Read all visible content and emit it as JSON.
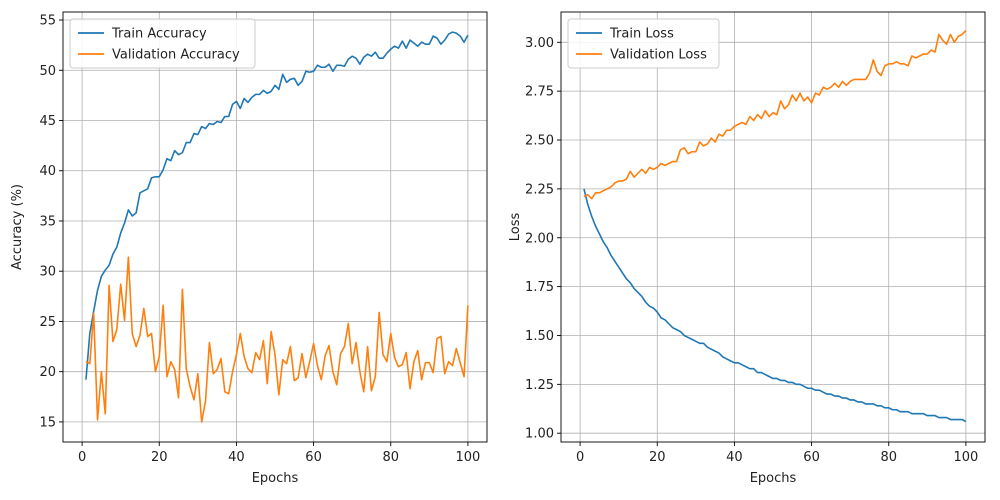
{
  "chart_data": [
    {
      "type": "line",
      "title": "",
      "xlabel": "Epochs",
      "ylabel": "Accuracy (%)",
      "xlim": [
        -4.95,
        104.95
      ],
      "ylim": [
        13.0,
        55.8
      ],
      "xticks": [
        0,
        20,
        40,
        60,
        80,
        100
      ],
      "yticks": [
        15,
        20,
        25,
        30,
        35,
        40,
        45,
        50,
        55
      ],
      "grid": true,
      "legend_position": "top-left",
      "series": [
        {
          "name": "Train Accuracy",
          "color": "#1f77b4",
          "x_start": 1,
          "values": [
            19.2,
            23.8,
            26.0,
            28.1,
            29.5,
            30.1,
            30.6,
            31.7,
            32.4,
            33.8,
            34.8,
            36.1,
            35.5,
            35.8,
            37.8,
            38.0,
            38.2,
            39.3,
            39.4,
            39.4,
            40.1,
            41.2,
            41.0,
            42.0,
            41.6,
            41.8,
            42.8,
            42.8,
            43.7,
            43.6,
            44.4,
            44.2,
            44.7,
            44.6,
            44.9,
            44.8,
            45.4,
            45.4,
            46.6,
            46.9,
            46.2,
            47.2,
            46.8,
            47.3,
            47.6,
            47.6,
            48.0,
            47.7,
            47.9,
            48.5,
            48.1,
            49.6,
            48.8,
            49.1,
            49.2,
            48.5,
            48.9,
            49.9,
            49.8,
            49.9,
            50.5,
            50.3,
            50.3,
            50.6,
            49.9,
            50.5,
            50.5,
            50.4,
            51.1,
            51.4,
            51.2,
            50.6,
            51.3,
            51.6,
            51.4,
            51.8,
            51.2,
            51.2,
            51.7,
            52.1,
            52.4,
            52.2,
            52.9,
            52.2,
            53.0,
            52.7,
            52.4,
            52.8,
            52.6,
            52.6,
            53.4,
            53.2,
            52.6,
            53.0,
            53.6,
            53.8,
            53.7,
            53.4,
            52.8,
            53.5
          ]
        },
        {
          "name": "Validation Accuracy",
          "color": "#ff7f0e",
          "x_start": 1,
          "values": [
            21.0,
            20.8,
            25.8,
            15.2,
            20.0,
            15.8,
            28.6,
            23.0,
            24.2,
            28.7,
            25.1,
            31.4,
            23.8,
            22.5,
            23.6,
            26.3,
            23.5,
            23.8,
            20.0,
            21.5,
            26.6,
            19.5,
            21.0,
            20.2,
            17.4,
            28.2,
            20.3,
            18.5,
            17.2,
            19.8,
            15.0,
            17.1,
            22.9,
            19.8,
            20.2,
            21.3,
            18.0,
            17.8,
            20.0,
            21.7,
            23.8,
            21.5,
            20.3,
            19.9,
            21.9,
            21.2,
            23.1,
            18.8,
            24.0,
            21.7,
            17.7,
            21.2,
            20.8,
            22.5,
            19.1,
            19.4,
            21.8,
            19.4,
            21.0,
            22.8,
            20.6,
            19.2,
            21.6,
            22.6,
            20.0,
            18.7,
            21.8,
            22.5,
            24.8,
            20.8,
            22.9,
            20.0,
            18.0,
            22.5,
            18.1,
            19.5,
            25.9,
            21.7,
            21.0,
            23.8,
            21.4,
            20.5,
            20.7,
            21.9,
            18.3,
            21.0,
            22.1,
            19.2,
            20.9,
            20.9,
            19.9,
            23.3,
            23.5,
            19.8,
            21.0,
            20.6,
            22.3,
            20.9,
            19.5,
            26.6
          ]
        }
      ]
    },
    {
      "type": "line",
      "title": "",
      "xlabel": "Epochs",
      "ylabel": "Loss",
      "xlim": [
        -4.95,
        104.95
      ],
      "ylim": [
        0.955,
        3.155
      ],
      "xticks": [
        0,
        20,
        40,
        60,
        80,
        100
      ],
      "yticks": [
        1.0,
        1.25,
        1.5,
        1.75,
        2.0,
        2.25,
        2.5,
        2.75,
        3.0
      ],
      "grid": true,
      "legend_position": "top-left",
      "series": [
        {
          "name": "Train Loss",
          "color": "#1f77b4",
          "x_start": 1,
          "values": [
            2.25,
            2.17,
            2.11,
            2.06,
            2.02,
            1.98,
            1.95,
            1.91,
            1.88,
            1.85,
            1.82,
            1.79,
            1.77,
            1.74,
            1.72,
            1.7,
            1.67,
            1.65,
            1.64,
            1.62,
            1.59,
            1.58,
            1.56,
            1.54,
            1.53,
            1.52,
            1.5,
            1.49,
            1.48,
            1.47,
            1.46,
            1.46,
            1.44,
            1.43,
            1.42,
            1.41,
            1.39,
            1.38,
            1.37,
            1.36,
            1.36,
            1.35,
            1.34,
            1.33,
            1.33,
            1.31,
            1.31,
            1.3,
            1.29,
            1.28,
            1.28,
            1.27,
            1.27,
            1.26,
            1.26,
            1.25,
            1.25,
            1.24,
            1.23,
            1.23,
            1.22,
            1.22,
            1.21,
            1.2,
            1.2,
            1.19,
            1.19,
            1.18,
            1.18,
            1.17,
            1.17,
            1.16,
            1.16,
            1.15,
            1.15,
            1.15,
            1.14,
            1.14,
            1.13,
            1.13,
            1.12,
            1.12,
            1.11,
            1.11,
            1.11,
            1.1,
            1.1,
            1.1,
            1.1,
            1.09,
            1.09,
            1.09,
            1.08,
            1.08,
            1.08,
            1.07,
            1.07,
            1.07,
            1.07,
            1.06
          ]
        },
        {
          "name": "Validation Loss",
          "color": "#ff7f0e",
          "x_start": 1,
          "values": [
            2.21,
            2.22,
            2.2,
            2.23,
            2.23,
            2.24,
            2.25,
            2.26,
            2.28,
            2.29,
            2.29,
            2.3,
            2.34,
            2.31,
            2.33,
            2.35,
            2.33,
            2.36,
            2.35,
            2.36,
            2.38,
            2.37,
            2.38,
            2.39,
            2.39,
            2.45,
            2.46,
            2.43,
            2.44,
            2.44,
            2.49,
            2.47,
            2.48,
            2.51,
            2.49,
            2.53,
            2.52,
            2.55,
            2.55,
            2.57,
            2.58,
            2.59,
            2.58,
            2.62,
            2.6,
            2.63,
            2.61,
            2.65,
            2.62,
            2.64,
            2.63,
            2.7,
            2.66,
            2.68,
            2.73,
            2.7,
            2.74,
            2.7,
            2.72,
            2.69,
            2.74,
            2.73,
            2.77,
            2.76,
            2.77,
            2.79,
            2.77,
            2.8,
            2.78,
            2.8,
            2.81,
            2.81,
            2.81,
            2.81,
            2.84,
            2.91,
            2.85,
            2.83,
            2.88,
            2.89,
            2.89,
            2.9,
            2.89,
            2.89,
            2.88,
            2.93,
            2.92,
            2.93,
            2.94,
            2.94,
            2.96,
            2.95,
            3.04,
            3.01,
            2.99,
            3.04,
            3.0,
            3.03,
            3.04,
            3.06
          ]
        }
      ]
    }
  ]
}
